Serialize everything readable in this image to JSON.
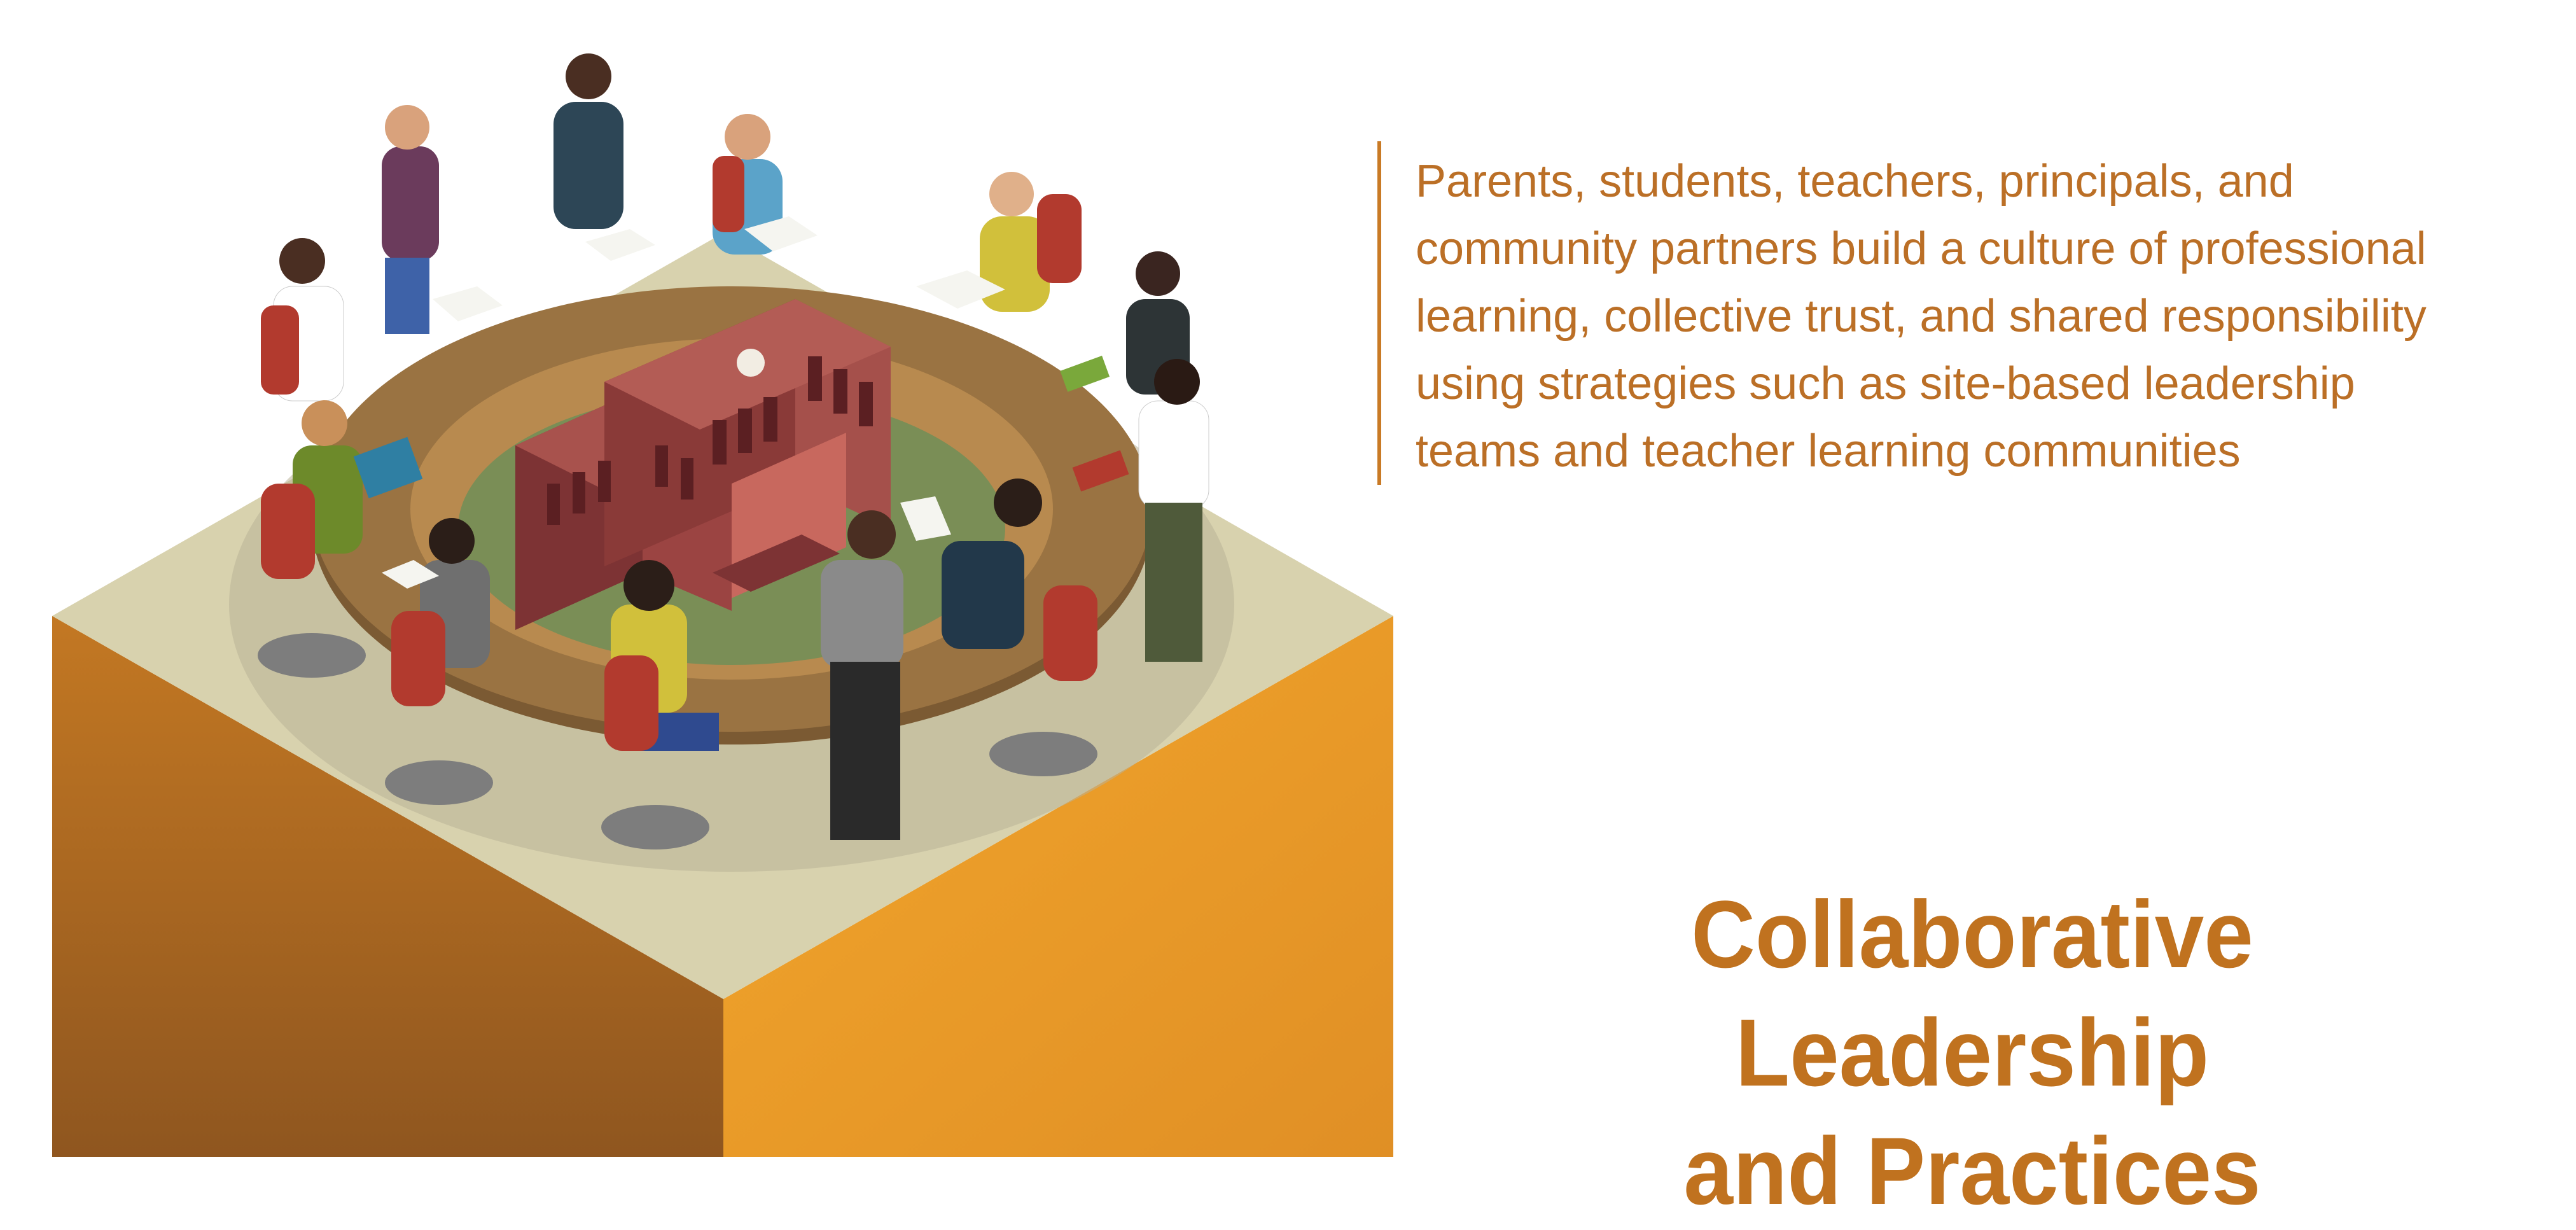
{
  "description": {
    "lines": [
      "Parents, students, teachers, principals, and",
      "community partners build a culture of professional",
      "learning, collective trust, and shared responsibility",
      "using strategies such as site-based leadership",
      "teams and teacher learning communities"
    ]
  },
  "title": {
    "line1": "Collaborative Leadership",
    "line2": "and Practices"
  },
  "colors": {
    "text_orange": "#bb6f26",
    "title_orange": "#c0721f",
    "block_left": "#a86320",
    "block_right": "#eaa22e",
    "floor": "#d8d2ae",
    "table": "#9a7342",
    "lawn": "#7a8e56",
    "building": "#8a3a38"
  },
  "icons": {
    "illustration": "isometric-meeting-around-school-icon"
  }
}
